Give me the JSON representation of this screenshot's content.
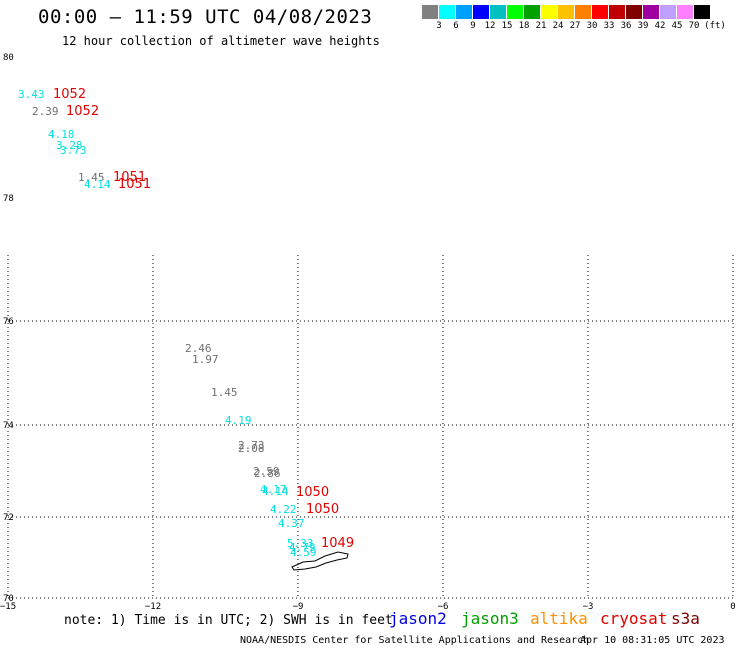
{
  "header": {
    "title": "00:00 – 11:59 UTC 04/08/2023",
    "subtitle": "12 hour collection of altimeter wave heights"
  },
  "colorbar": {
    "colors": [
      "#808080",
      "#00ffff",
      "#00a0ff",
      "#0000ff",
      "#00c0c0",
      "#00ff00",
      "#00a000",
      "#ffff00",
      "#ffc000",
      "#ff8000",
      "#ff0000",
      "#c00000",
      "#800000",
      "#a000a0",
      "#c0a0ff",
      "#ff80ff",
      "#000000"
    ],
    "labels": [
      "3",
      "6",
      "9",
      "12",
      "15",
      "18",
      "21",
      "24",
      "27",
      "30",
      "33",
      "36",
      "39",
      "42",
      "45",
      "70",
      "(ft)"
    ]
  },
  "map": {
    "lat_labels": [
      "80",
      "78",
      "76",
      "74",
      "72",
      "70"
    ],
    "lon_labels": [
      "−15",
      "−12",
      "−9",
      "−6",
      "−3",
      "0"
    ]
  },
  "chart_data": {
    "type": "scatter",
    "xlabel": "",
    "ylabel": "",
    "grid": true,
    "wave_heights_ft": [
      {
        "value": "3.43",
        "color": "#00e0e0"
      },
      {
        "value": "2.39",
        "color": "#707070"
      },
      {
        "value": "4.18",
        "color": "#00e0e0"
      },
      {
        "value": "3.28",
        "color": "#00e0e0"
      },
      {
        "value": "3.73",
        "color": "#00e0e0"
      },
      {
        "value": "1.45",
        "color": "#707070"
      },
      {
        "value": "4.14",
        "color": "#00e0e0"
      },
      {
        "value": "2.46",
        "color": "#707070"
      },
      {
        "value": "1.97",
        "color": "#707070"
      },
      {
        "value": "1.45",
        "color": "#707070"
      },
      {
        "value": "4.19",
        "color": "#00e0e0"
      },
      {
        "value": "2.73",
        "color": "#707070"
      },
      {
        "value": "2.08",
        "color": "#707070"
      },
      {
        "value": "2.59",
        "color": "#707070"
      },
      {
        "value": "2.86",
        "color": "#707070"
      },
      {
        "value": "4.17",
        "color": "#00e0e0"
      },
      {
        "value": "4.14",
        "color": "#00e0e0"
      },
      {
        "value": "4.22",
        "color": "#00e0e0"
      },
      {
        "value": "4.37",
        "color": "#00e0e0"
      },
      {
        "value": "5.33",
        "color": "#00e0e0"
      },
      {
        "value": "4.79",
        "color": "#00e0e0"
      },
      {
        "value": "4.59",
        "color": "#00e0e0"
      }
    ],
    "pressure_labels": [
      "1052",
      "1052",
      "1051",
      "1051",
      "1050",
      "1050",
      "1049"
    ]
  },
  "footer": {
    "note": "note: 1) Time is in UTC; 2) SWH is in feet",
    "satellites": [
      {
        "name": "jason2",
        "color": "#0000e0"
      },
      {
        "name": "jason3",
        "color": "#00a000"
      },
      {
        "name": "altika",
        "color": "#ff9000"
      },
      {
        "name": "cryosat",
        "color": "#e00000"
      },
      {
        "name": "s3a",
        "color": "#800000"
      }
    ],
    "credit": "NOAA/NESDIS Center for Satellite Applications and Research",
    "timestamp": "Apr 10 08:31:05 UTC 2023"
  }
}
